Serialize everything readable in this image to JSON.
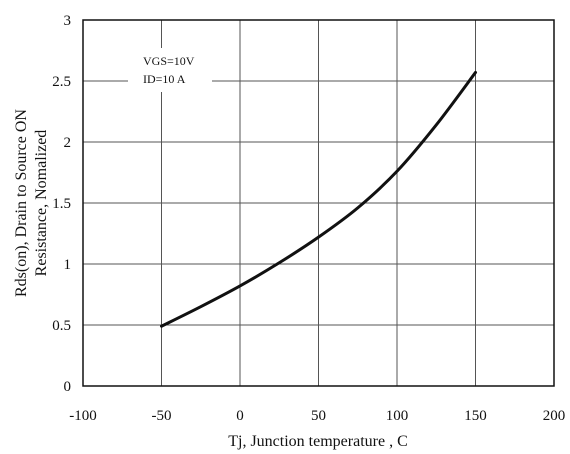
{
  "chart_data": {
    "type": "line",
    "xlabel": "Tj, Junction temperature , C",
    "ylabel_lines": [
      "Rds(on), Drain to Source ON",
      "Resistance, Nomalized"
    ],
    "xlim": [
      -100,
      200
    ],
    "ylim": [
      0,
      3
    ],
    "x_ticks": [
      -100,
      -50,
      0,
      50,
      100,
      150,
      200
    ],
    "y_ticks": [
      0,
      0.5,
      1,
      1.5,
      2,
      2.5,
      3
    ],
    "x_tick_labels": [
      "-100",
      "-50",
      "0",
      "50",
      "100",
      "150",
      "200"
    ],
    "y_tick_labels": [
      "0",
      "0.5",
      "1",
      "1.5",
      "2",
      "2.5",
      "3"
    ],
    "grid": true,
    "annotations": [
      "VGS=10V",
      "ID=10 A"
    ],
    "series": [
      {
        "x": [
          -50,
          -25,
          0,
          25,
          50,
          75,
          100,
          125,
          150
        ],
        "y": [
          0.49,
          0.65,
          0.82,
          1.01,
          1.22,
          1.46,
          1.76,
          2.14,
          2.57
        ]
      }
    ]
  }
}
